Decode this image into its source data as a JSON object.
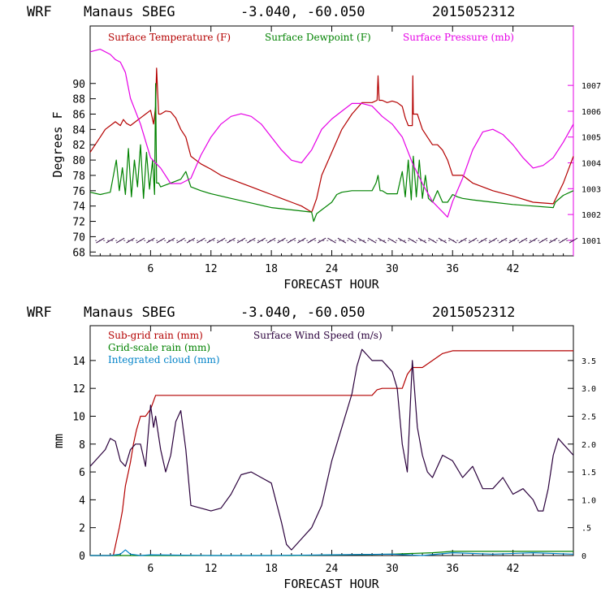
{
  "chart_data": [
    {
      "type": "line",
      "header": {
        "model": "WRF",
        "station": "Manaus SBEG",
        "coords": "-3.040, -60.050",
        "init": "2015052312"
      },
      "xlabel": "FORECAST HOUR",
      "ylabel": "Degrees F",
      "xlim": [
        0,
        48
      ],
      "ylim": [
        67.5,
        97.5
      ],
      "y2lim": [
        1000.4,
        1009.3
      ],
      "x_ticks": [
        6,
        12,
        18,
        24,
        30,
        36,
        42
      ],
      "y_ticks": [
        68,
        70,
        72,
        74,
        76,
        78,
        80,
        82,
        84,
        86,
        88,
        90
      ],
      "y2_ticks": [
        1001,
        1002,
        1003,
        1004,
        1005,
        1006,
        1007
      ],
      "colors": {
        "temperature": "#b40000",
        "dewpoint": "#008200",
        "pressure": "#e600e6",
        "wind_barbs": "#2a003c"
      },
      "series": [
        {
          "name": "Surface Temperature (F)",
          "axis": "left",
          "color": "#b40000",
          "x": [
            0,
            0.5,
            1,
            1.5,
            2,
            2.5,
            3,
            3.3,
            3.6,
            4,
            4.5,
            5,
            5.5,
            6,
            6.3,
            6.5,
            6.6,
            6.8,
            7,
            7.5,
            8,
            8.5,
            9,
            9.5,
            10,
            11,
            12,
            13,
            14,
            15,
            16,
            17,
            18,
            19,
            20,
            21,
            22,
            22.1,
            22.5,
            23,
            24,
            25,
            26,
            27,
            28,
            28.5,
            28.6,
            28.7,
            29,
            29.5,
            30,
            30.5,
            31,
            31.3,
            31.6,
            32,
            32.05,
            32.1,
            32.5,
            33,
            33.5,
            34,
            34.5,
            35,
            35.5,
            36,
            36.5,
            37,
            38,
            40,
            42,
            44,
            46,
            47,
            48
          ],
          "values": [
            81,
            82,
            83,
            84,
            84.5,
            85,
            84.5,
            85.3,
            84.8,
            84.5,
            85,
            85.5,
            86,
            86.5,
            84.7,
            87,
            92,
            86,
            86,
            86.4,
            86.3,
            85.5,
            84,
            83,
            80.5,
            79.5,
            78.8,
            78,
            77.5,
            77,
            76.5,
            76,
            75.5,
            75,
            74.5,
            74,
            73.2,
            73.5,
            75,
            78,
            81,
            84,
            86,
            87.5,
            87.5,
            87.8,
            91,
            87.8,
            87.8,
            87.5,
            87.7,
            87.5,
            87,
            85.5,
            84.5,
            84.5,
            91,
            86,
            86,
            84,
            83,
            82,
            82,
            81.3,
            80,
            78,
            78,
            78,
            77,
            76,
            75.3,
            74.5,
            74.3,
            77,
            80.5
          ]
        },
        {
          "name": "Surface Dewpoint (F)",
          "axis": "left",
          "color": "#008200",
          "x": [
            0,
            1,
            2,
            2.6,
            2.9,
            3.2,
            3.5,
            3.8,
            4.1,
            4.4,
            4.7,
            5,
            5.3,
            5.6,
            5.9,
            6.2,
            6.4,
            6.5,
            6.6,
            6.8,
            7,
            8,
            9,
            9.5,
            10,
            11,
            12,
            14,
            16,
            18,
            20,
            22,
            22.2,
            22.5,
            23,
            24,
            24.5,
            25,
            26,
            27,
            28,
            28.4,
            28.6,
            28.8,
            29,
            29.5,
            30,
            30.5,
            31,
            31.3,
            31.6,
            31.9,
            32.1,
            32.4,
            32.7,
            33,
            33.3,
            33.6,
            34,
            34.5,
            35,
            35.5,
            36,
            36.5,
            37,
            38,
            40,
            42,
            44,
            46,
            46.2,
            47,
            48
          ],
          "values": [
            75.8,
            75.5,
            75.8,
            80,
            76,
            79,
            75.5,
            81.5,
            75.2,
            80,
            76.5,
            82,
            75,
            81,
            76.2,
            80,
            75.5,
            90,
            77,
            77,
            76.5,
            77,
            77.5,
            78.5,
            76.5,
            76,
            75.6,
            75,
            74.4,
            73.8,
            73.5,
            73.2,
            72,
            73,
            73.5,
            74.5,
            75.5,
            75.8,
            76,
            76,
            76,
            77,
            78,
            76,
            76,
            75.6,
            75.6,
            75.6,
            78.5,
            75.2,
            80,
            74.8,
            80.5,
            75.2,
            80,
            75,
            78,
            75,
            74.5,
            76,
            74.5,
            74.5,
            75.5,
            75.2,
            75,
            74.8,
            74.5,
            74.2,
            74,
            73.8,
            74.5,
            75.4,
            76
          ]
        },
        {
          "name": "Surface Pressure (mb)",
          "axis": "right",
          "color": "#e600e6",
          "x": [
            0,
            1,
            2,
            2.5,
            3,
            3.5,
            4,
            5,
            6,
            7,
            8,
            9,
            10,
            11,
            12,
            13,
            14,
            15,
            16,
            17,
            18,
            19,
            20,
            21,
            22,
            23,
            24,
            25,
            26,
            27,
            28,
            29,
            30,
            31,
            32,
            33,
            34,
            35,
            35.5,
            36,
            37,
            38,
            39,
            40,
            41,
            42,
            43,
            44,
            45,
            46,
            47,
            48
          ],
          "values": [
            1008.3,
            1008.4,
            1008.2,
            1008,
            1007.9,
            1007.5,
            1006.5,
            1005.5,
            1004.2,
            1003.8,
            1003.2,
            1003.2,
            1003.4,
            1004.3,
            1005,
            1005.5,
            1005.8,
            1005.9,
            1005.8,
            1005.5,
            1005,
            1004.5,
            1004.1,
            1004,
            1004.5,
            1005.3,
            1005.7,
            1006,
            1006.3,
            1006.3,
            1006.2,
            1005.8,
            1005.5,
            1005,
            1004,
            1003.2,
            1002.5,
            1002.1,
            1001.9,
            1002.5,
            1003.4,
            1004.5,
            1005.2,
            1005.3,
            1005.1,
            1004.7,
            1004.2,
            1003.8,
            1003.9,
            1004.2,
            1004.8,
            1005.5
          ]
        }
      ],
      "legend": [
        {
          "label": "Surface Temperature (F)",
          "color": "#b40000"
        },
        {
          "label": "Surface Dewpoint (F)",
          "color": "#008200"
        },
        {
          "label": "Surface Pressure (mb)",
          "color": "#e600e6"
        }
      ],
      "legend_position": "top-left",
      "wind_barbs_level": 69.5,
      "wind_barbs_hours": [
        1,
        2,
        3,
        4,
        5,
        6,
        7,
        8,
        9,
        10,
        11,
        12,
        13,
        14,
        15,
        16,
        17,
        18,
        19,
        20,
        21,
        22,
        23,
        24,
        25,
        26,
        27,
        28,
        29,
        30,
        31,
        32,
        33,
        34,
        35,
        36,
        37,
        38,
        39,
        40,
        41,
        42,
        43,
        44,
        45,
        46,
        47,
        48
      ],
      "grid": false
    },
    {
      "type": "line",
      "header": {
        "model": "WRF",
        "station": "Manaus SBEG",
        "coords": "-3.040, -60.050",
        "init": "2015052312"
      },
      "xlabel": "FORECAST HOUR",
      "ylabel": "mm",
      "xlim": [
        0,
        48
      ],
      "ylim": [
        0,
        16.5
      ],
      "y2lim": [
        0,
        4.125
      ],
      "x_ticks": [
        6,
        12,
        18,
        24,
        30,
        36,
        42
      ],
      "y_ticks": [
        0,
        2,
        4,
        6,
        8,
        10,
        12,
        14
      ],
      "y2_ticks": [
        "0",
        ".5",
        "1.0",
        "1.5",
        "2.0",
        "2.5",
        "3.0",
        "3.5"
      ],
      "colors": {
        "subgrid": "#b40000",
        "gridscale": "#008200",
        "cloud": "#0082c8",
        "wind": "#2a003c"
      },
      "series": [
        {
          "name": "Sub-grid rain (mm)",
          "axis": "left",
          "color": "#b40000",
          "x": [
            0,
            2,
            2.3,
            2.6,
            2.9,
            3.2,
            3.5,
            3.8,
            4,
            4.3,
            4.6,
            5,
            5.5,
            6,
            6.5,
            8,
            12,
            18,
            24,
            27,
            28,
            28.5,
            29,
            30,
            31,
            31.5,
            32,
            33,
            34,
            35,
            36,
            42,
            48
          ],
          "values": [
            0,
            0,
            0,
            1,
            2,
            3.2,
            5,
            6,
            6.7,
            8,
            9,
            10,
            10,
            10.5,
            11.5,
            11.5,
            11.5,
            11.5,
            11.5,
            11.5,
            11.5,
            11.9,
            12,
            12,
            12,
            13,
            13.5,
            13.5,
            14,
            14.5,
            14.7,
            14.7,
            14.7
          ]
        },
        {
          "name": "Grid-scale rain (mm)",
          "axis": "left",
          "color": "#008200",
          "x": [
            0,
            10,
            20,
            30,
            34,
            36,
            40,
            44,
            48
          ],
          "values": [
            0,
            0,
            0,
            0.1,
            0.2,
            0.3,
            0.3,
            0.3,
            0.3
          ]
        },
        {
          "name": "Integrated cloud (mm)",
          "axis": "left",
          "color": "#0082c8",
          "x": [
            0,
            1,
            2,
            3,
            3.5,
            4,
            5,
            6,
            12,
            18,
            24,
            30,
            33,
            36,
            40,
            44,
            48
          ],
          "values": [
            0,
            0,
            0,
            0.1,
            0.4,
            0.1,
            0,
            0.05,
            0,
            0,
            0.05,
            0.1,
            0,
            0.2,
            0.1,
            0.2,
            0.1
          ]
        },
        {
          "name": "Surface Wind Speed (m/s)",
          "axis": "right",
          "color": "#2a003c",
          "x": [
            0,
            0.5,
            1,
            1.5,
            2,
            2.5,
            3,
            3.5,
            4,
            4.5,
            5,
            5.5,
            6,
            6.3,
            6.5,
            7,
            7.5,
            8,
            8.5,
            9,
            9.5,
            10,
            11,
            12,
            13,
            14,
            15,
            16,
            17,
            18,
            19,
            19.5,
            20,
            21,
            22,
            23,
            24,
            25,
            26,
            26.5,
            27,
            27.5,
            28,
            28.5,
            29,
            29.5,
            30,
            30.5,
            31,
            31.5,
            32,
            32.5,
            33,
            33.5,
            34,
            35,
            36,
            37,
            38,
            39,
            40,
            41,
            42,
            43,
            44,
            44.5,
            45,
            45.5,
            46,
            46.5,
            47,
            48
          ],
          "values": [
            1.6,
            1.7,
            1.8,
            1.9,
            2.1,
            2.05,
            1.7,
            1.6,
            1.9,
            2.0,
            2.0,
            1.6,
            2.7,
            2.3,
            2.5,
            1.9,
            1.5,
            1.8,
            2.4,
            2.6,
            1.9,
            0.9,
            0.85,
            0.8,
            0.85,
            1.1,
            1.45,
            1.5,
            1.4,
            1.3,
            0.6,
            0.2,
            0.1,
            0.3,
            0.5,
            0.9,
            1.7,
            2.3,
            2.9,
            3.4,
            3.7,
            3.6,
            3.5,
            3.5,
            3.5,
            3.4,
            3.3,
            3.0,
            2.0,
            1.5,
            3.5,
            2.3,
            1.8,
            1.5,
            1.4,
            1.8,
            1.7,
            1.4,
            1.6,
            1.2,
            1.2,
            1.4,
            1.1,
            1.2,
            1.0,
            0.8,
            0.8,
            1.2,
            1.8,
            2.1,
            2.0,
            1.8
          ]
        }
      ],
      "legend": [
        {
          "label": "Sub-grid rain (mm)",
          "color": "#b40000"
        },
        {
          "label": "Grid-scale rain (mm)",
          "color": "#008200"
        },
        {
          "label": "Integrated cloud (mm)",
          "color": "#0082c8"
        },
        {
          "label": "Surface Wind Speed (m/s)",
          "color": "#2a003c"
        }
      ],
      "legend_position": "top-left",
      "grid": false
    }
  ]
}
